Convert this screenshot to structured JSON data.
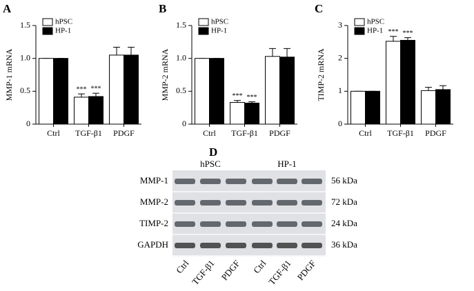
{
  "chart_data": [
    {
      "type": "bar",
      "panel": "A",
      "ylabel": "MMP-1 mRNA",
      "categories": [
        "Ctrl",
        "TGF-β1",
        "PDGF"
      ],
      "series": [
        {
          "name": "hPSC",
          "color": "#ffffff",
          "values": [
            1.0,
            0.41,
            1.05
          ],
          "errors": [
            0,
            0.05,
            0.12
          ],
          "significance": [
            null,
            "***",
            null
          ]
        },
        {
          "name": "HP-1",
          "color": "#000000",
          "values": [
            1.0,
            0.42,
            1.05
          ],
          "errors": [
            0,
            0.05,
            0.12
          ],
          "significance": [
            null,
            "***",
            null
          ]
        }
      ],
      "ylim": [
        0,
        1.5
      ],
      "yticks": [
        0,
        0.5,
        {
          "value": 1,
          "label": "1.0"
        },
        1.5
      ],
      "legend": "upper left"
    },
    {
      "type": "bar",
      "panel": "B",
      "ylabel": "MMP-2 mRNA",
      "categories": [
        "Ctrl",
        "TGF-β1",
        "PDGF"
      ],
      "series": [
        {
          "name": "hPSC",
          "color": "#ffffff",
          "values": [
            1.0,
            0.33,
            1.03
          ],
          "errors": [
            0,
            0.03,
            0.12
          ],
          "significance": [
            null,
            "***",
            null
          ]
        },
        {
          "name": "HP-1",
          "color": "#000000",
          "values": [
            1.0,
            0.32,
            1.02
          ],
          "errors": [
            0,
            0.02,
            0.13
          ],
          "significance": [
            null,
            "***",
            null
          ]
        }
      ],
      "ylim": [
        0,
        1.5
      ],
      "yticks": [
        0,
        0.5,
        {
          "value": 1,
          "label": "1.0"
        },
        1.5
      ],
      "legend": "upper left"
    },
    {
      "type": "bar",
      "panel": "C",
      "ylabel": "TIMP-2 mRNA",
      "categories": [
        "Ctrl",
        "TGF-β1",
        "PDGF"
      ],
      "series": [
        {
          "name": "hPSC",
          "color": "#ffffff",
          "values": [
            1.0,
            2.52,
            1.02
          ],
          "errors": [
            0,
            0.15,
            0.1
          ],
          "significance": [
            null,
            "***",
            null
          ]
        },
        {
          "name": "HP-1",
          "color": "#000000",
          "values": [
            1.0,
            2.55,
            1.05
          ],
          "errors": [
            0,
            0.08,
            0.12
          ],
          "significance": [
            null,
            "***",
            null
          ]
        }
      ],
      "ylim": [
        0,
        3
      ],
      "yticks": [
        0,
        1,
        2,
        3
      ],
      "legend": "upper left"
    }
  ],
  "blot": {
    "panel": "D",
    "groups": [
      "hPSC",
      "HP-1"
    ],
    "rows": [
      {
        "label": "MMP-1",
        "size": "56 kDa"
      },
      {
        "label": "MMP-2",
        "size": "72 kDa"
      },
      {
        "label": "TIMP-2",
        "size": "24 kDa"
      },
      {
        "label": "GAPDH",
        "size": "36 kDa"
      }
    ],
    "lanes": [
      "Ctrl",
      "TGF-β1",
      "PDGF",
      "Ctrl",
      "TGF-β1",
      "PDGF"
    ]
  }
}
